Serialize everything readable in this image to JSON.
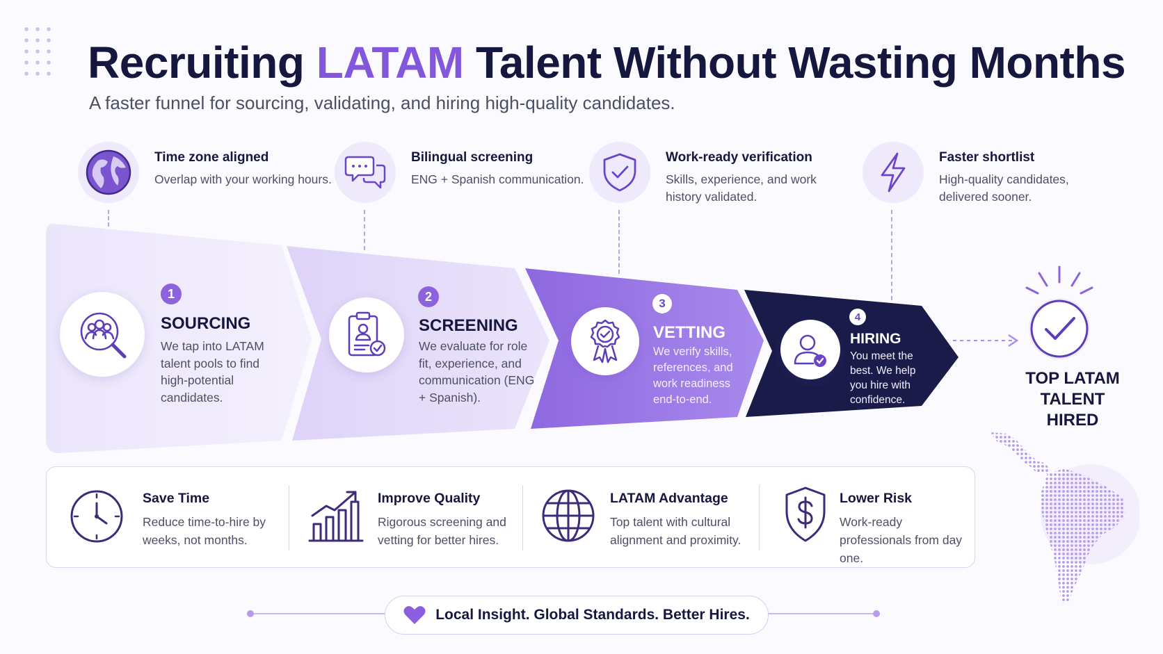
{
  "header": {
    "title_part1": "Recruiting ",
    "title_accent": "LATAM",
    "title_part2": " Talent Without Wasting Months",
    "subtitle": "A faster funnel for sourcing, validating, and hiring high-quality candidates."
  },
  "features": [
    {
      "title": "Time zone aligned",
      "desc": "Overlap with your working hours.",
      "icon": "globe-icon"
    },
    {
      "title": "Bilingual screening",
      "desc": "ENG + Spanish communication.",
      "icon": "chat-bubbles-icon"
    },
    {
      "title": "Work-ready verification",
      "desc": "Skills, experience, and work history validated.",
      "icon": "shield-check-icon"
    },
    {
      "title": "Faster shortlist",
      "desc": "High-quality candidates, delivered sooner.",
      "icon": "lightning-icon"
    }
  ],
  "stages": [
    {
      "number": "1",
      "title": "SOURCING",
      "desc": "We tap into LATAM talent pools to find high-potential candidates.",
      "icon": "people-search-icon"
    },
    {
      "number": "2",
      "title": "SCREENING",
      "desc": "We evaluate for role fit, experience, and communication (ENG + Spanish).",
      "icon": "clipboard-check-icon"
    },
    {
      "number": "3",
      "title": "VETTING",
      "desc": "We verify skills, references, and work readiness end-to-end.",
      "icon": "badge-check-icon"
    },
    {
      "number": "4",
      "title": "HIRING",
      "desc": "You meet the best. We help you hire with confidence.",
      "icon": "user-check-icon"
    }
  ],
  "result": {
    "line1": "TOP LATAM",
    "line2": "TALENT",
    "line3": "HIRED",
    "icon": "check-circle-icon"
  },
  "benefits": [
    {
      "title": "Save Time",
      "desc": "Reduce time-to-hire by weeks, not months.",
      "icon": "clock-icon"
    },
    {
      "title": "Improve Quality",
      "desc": "Rigorous screening and vetting for better hires.",
      "icon": "growth-chart-icon"
    },
    {
      "title": "LATAM Advantage",
      "desc": "Top talent with cultural alignment and proximity.",
      "icon": "globe-grid-icon"
    },
    {
      "title": "Lower Risk",
      "desc": "Work-ready professionals from day one.",
      "icon": "shield-dollar-icon"
    }
  ],
  "tagline": {
    "text": "Local Insight. Global Standards. Better Hires.",
    "icon": "heart-icon"
  },
  "colors": {
    "accent": "#8257dc",
    "navy": "#16173f",
    "lavender": "#efeafb"
  }
}
